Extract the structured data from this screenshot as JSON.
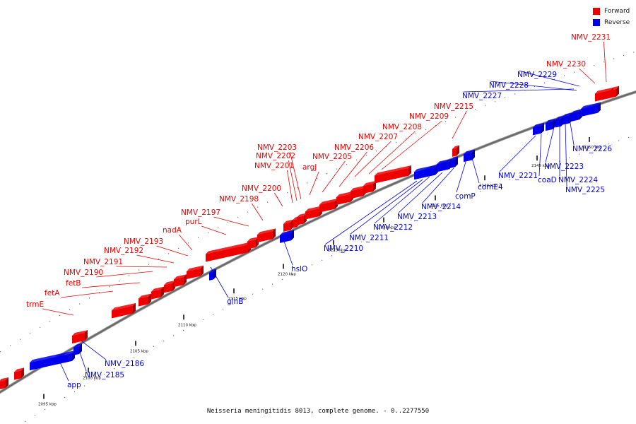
{
  "legend": {
    "forward_label": "Forward",
    "reverse_label": "Reverse",
    "forward_color": "#ee0000",
    "reverse_color": "#0000ee"
  },
  "caption": "Neisseria meningitidis 8013, complete genome. - 0..2277550",
  "ticks": [
    {
      "label": "2095 kbp"
    },
    {
      "label": "2100 kbp"
    },
    {
      "label": "2105 kbp"
    },
    {
      "label": "2110 kbp"
    },
    {
      "label": "2115 kbp"
    },
    {
      "label": "2120 kbp"
    },
    {
      "label": "2125 kbp"
    },
    {
      "label": "2130 kbp"
    },
    {
      "label": "2135 kbp"
    },
    {
      "label": "2140 kbp"
    },
    {
      "label": "2145 kbp"
    },
    {
      "label": "2150 kbp"
    }
  ],
  "forward_genes": [
    "trmE",
    "fetA",
    "fetB",
    "NMV_2190",
    "NMV_2191",
    "NMV_2192",
    "NMV_2193",
    "nadA",
    "purL",
    "NMV_2197",
    "NMV_2198",
    "NMV_2200",
    "NMV_2201",
    "NMV_2202",
    "NMV_2203",
    "argJ",
    "NMV_2205",
    "NMV_2206",
    "NMV_2207",
    "NMV_2208",
    "NMV_2209",
    "NMV_2215",
    "NMV_2230",
    "NMV_2231"
  ],
  "reverse_genes": [
    "app",
    "NMV_2185",
    "NMV_2186",
    "glnB",
    "hslO",
    "NMV_2210",
    "NMV_2211",
    "NMV_2212",
    "NMV_2213",
    "NMV_2214",
    "comP",
    "comE4",
    "NMV_2221",
    "coaD",
    "NMV_2223",
    "NMV_2224",
    "NMV_2225",
    "NMV_2226",
    "NMV_2227",
    "NMV_2228",
    "NMV_2229"
  ]
}
